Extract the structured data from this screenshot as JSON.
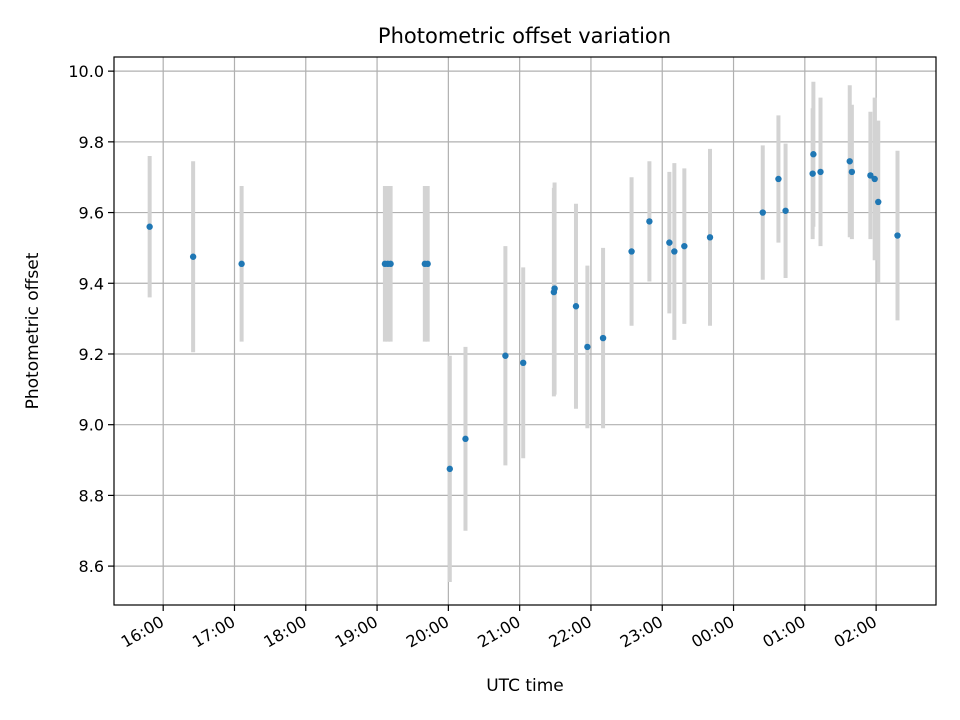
{
  "chart_data": {
    "type": "scatter",
    "title": "Photometric offset variation",
    "xlabel": "UTC time",
    "ylabel": "Photometric offset",
    "x_unit": "hours since 16:00 UTC",
    "xlim": [
      -0.69,
      10.84
    ],
    "ylim": [
      8.49,
      10.04
    ],
    "grid": true,
    "x_ticks": [
      {
        "value": 0,
        "label": "16:00"
      },
      {
        "value": 1,
        "label": "17:00"
      },
      {
        "value": 2,
        "label": "18:00"
      },
      {
        "value": 3,
        "label": "19:00"
      },
      {
        "value": 4,
        "label": "20:00"
      },
      {
        "value": 5,
        "label": "21:00"
      },
      {
        "value": 6,
        "label": "22:00"
      },
      {
        "value": 7,
        "label": "23:00"
      },
      {
        "value": 8,
        "label": "00:00"
      },
      {
        "value": 9,
        "label": "01:00"
      },
      {
        "value": 10,
        "label": "02:00"
      }
    ],
    "y_ticks": [
      {
        "value": 8.6,
        "label": "8.6"
      },
      {
        "value": 8.8,
        "label": "8.8"
      },
      {
        "value": 9.0,
        "label": "9.0"
      },
      {
        "value": 9.2,
        "label": "9.2"
      },
      {
        "value": 9.4,
        "label": "9.4"
      },
      {
        "value": 9.6,
        "label": "9.6"
      },
      {
        "value": 9.8,
        "label": "9.8"
      },
      {
        "value": 10.0,
        "label": "10.0"
      }
    ],
    "point_color": "#1f77b4",
    "errorbar_color": "#d3d3d3",
    "grid_color": "#b0b0b0",
    "points": [
      {
        "x": -0.19,
        "y": 9.56,
        "yerr": 0.2
      },
      {
        "x": 0.42,
        "y": 9.475,
        "yerr": 0.27
      },
      {
        "x": 1.1,
        "y": 9.455,
        "yerr": 0.22
      },
      {
        "x": 3.11,
        "y": 9.455,
        "yerr": 0.22
      },
      {
        "x": 3.15,
        "y": 9.455,
        "yerr": 0.22
      },
      {
        "x": 3.19,
        "y": 9.455,
        "yerr": 0.22
      },
      {
        "x": 3.67,
        "y": 9.455,
        "yerr": 0.22
      },
      {
        "x": 3.71,
        "y": 9.455,
        "yerr": 0.22
      },
      {
        "x": 4.02,
        "y": 8.875,
        "yerr": 0.32
      },
      {
        "x": 4.24,
        "y": 8.96,
        "yerr": 0.26
      },
      {
        "x": 4.8,
        "y": 9.195,
        "yerr": 0.31
      },
      {
        "x": 5.05,
        "y": 9.175,
        "yerr": 0.27
      },
      {
        "x": 5.48,
        "y": 9.375,
        "yerr": 0.295
      },
      {
        "x": 5.49,
        "y": 9.385,
        "yerr": 0.3
      },
      {
        "x": 5.79,
        "y": 9.335,
        "yerr": 0.29
      },
      {
        "x": 5.95,
        "y": 9.22,
        "yerr": 0.23
      },
      {
        "x": 6.17,
        "y": 9.245,
        "yerr": 0.255
      },
      {
        "x": 6.57,
        "y": 9.49,
        "yerr": 0.21
      },
      {
        "x": 6.82,
        "y": 9.575,
        "yerr": 0.17
      },
      {
        "x": 7.1,
        "y": 9.515,
        "yerr": 0.2
      },
      {
        "x": 7.17,
        "y": 9.49,
        "yerr": 0.25
      },
      {
        "x": 7.31,
        "y": 9.505,
        "yerr": 0.22
      },
      {
        "x": 7.67,
        "y": 9.53,
        "yerr": 0.25
      },
      {
        "x": 8.41,
        "y": 9.6,
        "yerr": 0.19
      },
      {
        "x": 8.63,
        "y": 9.695,
        "yerr": 0.18
      },
      {
        "x": 8.73,
        "y": 9.605,
        "yerr": 0.19
      },
      {
        "x": 9.11,
        "y": 9.71,
        "yerr": 0.185
      },
      {
        "x": 9.12,
        "y": 9.765,
        "yerr": 0.205
      },
      {
        "x": 9.22,
        "y": 9.715,
        "yerr": 0.21
      },
      {
        "x": 9.63,
        "y": 9.745,
        "yerr": 0.215
      },
      {
        "x": 9.66,
        "y": 9.715,
        "yerr": 0.19
      },
      {
        "x": 9.92,
        "y": 9.705,
        "yerr": 0.18
      },
      {
        "x": 9.98,
        "y": 9.695,
        "yerr": 0.23
      },
      {
        "x": 10.03,
        "y": 9.63,
        "yerr": 0.23
      },
      {
        "x": 10.3,
        "y": 9.535,
        "yerr": 0.24
      }
    ]
  }
}
